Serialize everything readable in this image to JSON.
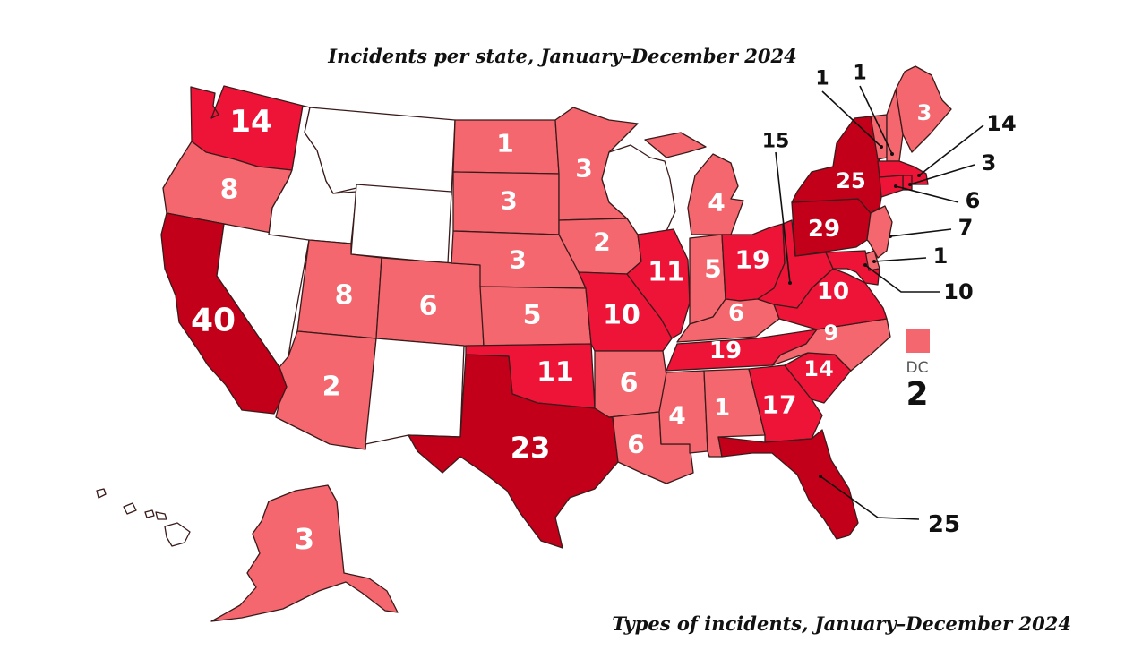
{
  "title": "Incidents per state, January–December 2024",
  "subtitle": "Types of incidents, January–December 2024",
  "colors": {
    "none": "#ffffff",
    "low": "#f4676e",
    "mid": "#ee1437",
    "high": "#c30019"
  },
  "states": [
    {
      "id": "WA",
      "value": 14,
      "tier": "mid"
    },
    {
      "id": "OR",
      "value": 8,
      "tier": "low"
    },
    {
      "id": "CA",
      "value": 40,
      "tier": "high"
    },
    {
      "id": "NV",
      "value": null,
      "tier": "none"
    },
    {
      "id": "ID",
      "value": null,
      "tier": "none"
    },
    {
      "id": "MT",
      "value": null,
      "tier": "none"
    },
    {
      "id": "WY",
      "value": null,
      "tier": "none"
    },
    {
      "id": "UT",
      "value": 8,
      "tier": "low"
    },
    {
      "id": "AZ",
      "value": 2,
      "tier": "low"
    },
    {
      "id": "CO",
      "value": 6,
      "tier": "low"
    },
    {
      "id": "NM",
      "value": null,
      "tier": "none"
    },
    {
      "id": "ND",
      "value": 1,
      "tier": "low"
    },
    {
      "id": "SD",
      "value": 3,
      "tier": "low"
    },
    {
      "id": "NE",
      "value": 3,
      "tier": "low"
    },
    {
      "id": "KS",
      "value": 5,
      "tier": "low"
    },
    {
      "id": "OK",
      "value": 11,
      "tier": "mid"
    },
    {
      "id": "TX",
      "value": 23,
      "tier": "high"
    },
    {
      "id": "MN",
      "value": 3,
      "tier": "low"
    },
    {
      "id": "IA",
      "value": 2,
      "tier": "low"
    },
    {
      "id": "MO",
      "value": 10,
      "tier": "mid"
    },
    {
      "id": "AR",
      "value": 6,
      "tier": "low"
    },
    {
      "id": "LA",
      "value": 6,
      "tier": "low"
    },
    {
      "id": "WI",
      "value": null,
      "tier": "none"
    },
    {
      "id": "IL",
      "value": 11,
      "tier": "mid"
    },
    {
      "id": "MI",
      "value": 4,
      "tier": "low"
    },
    {
      "id": "IN",
      "value": 5,
      "tier": "low"
    },
    {
      "id": "OH",
      "value": 19,
      "tier": "mid"
    },
    {
      "id": "KY",
      "value": 6,
      "tier": "low"
    },
    {
      "id": "TN",
      "value": 19,
      "tier": "mid"
    },
    {
      "id": "MS",
      "value": 4,
      "tier": "low"
    },
    {
      "id": "AL",
      "value": 1,
      "tier": "low"
    },
    {
      "id": "GA",
      "value": 17,
      "tier": "mid"
    },
    {
      "id": "FL",
      "value": 25,
      "tier": "high"
    },
    {
      "id": "SC",
      "value": 14,
      "tier": "mid"
    },
    {
      "id": "NC",
      "value": 9,
      "tier": "low"
    },
    {
      "id": "VA",
      "value": 10,
      "tier": "mid"
    },
    {
      "id": "WV",
      "value": 15,
      "tier": "mid"
    },
    {
      "id": "PA",
      "value": 29,
      "tier": "high"
    },
    {
      "id": "NY",
      "value": 25,
      "tier": "high"
    },
    {
      "id": "ME",
      "value": 3,
      "tier": "low"
    },
    {
      "id": "VT",
      "value": 1,
      "tier": "low"
    },
    {
      "id": "NH",
      "value": 1,
      "tier": "low"
    },
    {
      "id": "MA",
      "value": 14,
      "tier": "mid"
    },
    {
      "id": "RI",
      "value": 3,
      "tier": "mid"
    },
    {
      "id": "CT",
      "value": 6,
      "tier": "mid"
    },
    {
      "id": "NJ",
      "value": 7,
      "tier": "low"
    },
    {
      "id": "DE",
      "value": 1,
      "tier": "low"
    },
    {
      "id": "MD",
      "value": 10,
      "tier": "mid"
    },
    {
      "id": "AK",
      "value": 3,
      "tier": "low"
    },
    {
      "id": "HI",
      "value": null,
      "tier": "none"
    }
  ],
  "dc": {
    "label": "DC",
    "value": 2,
    "tier": "low"
  }
}
